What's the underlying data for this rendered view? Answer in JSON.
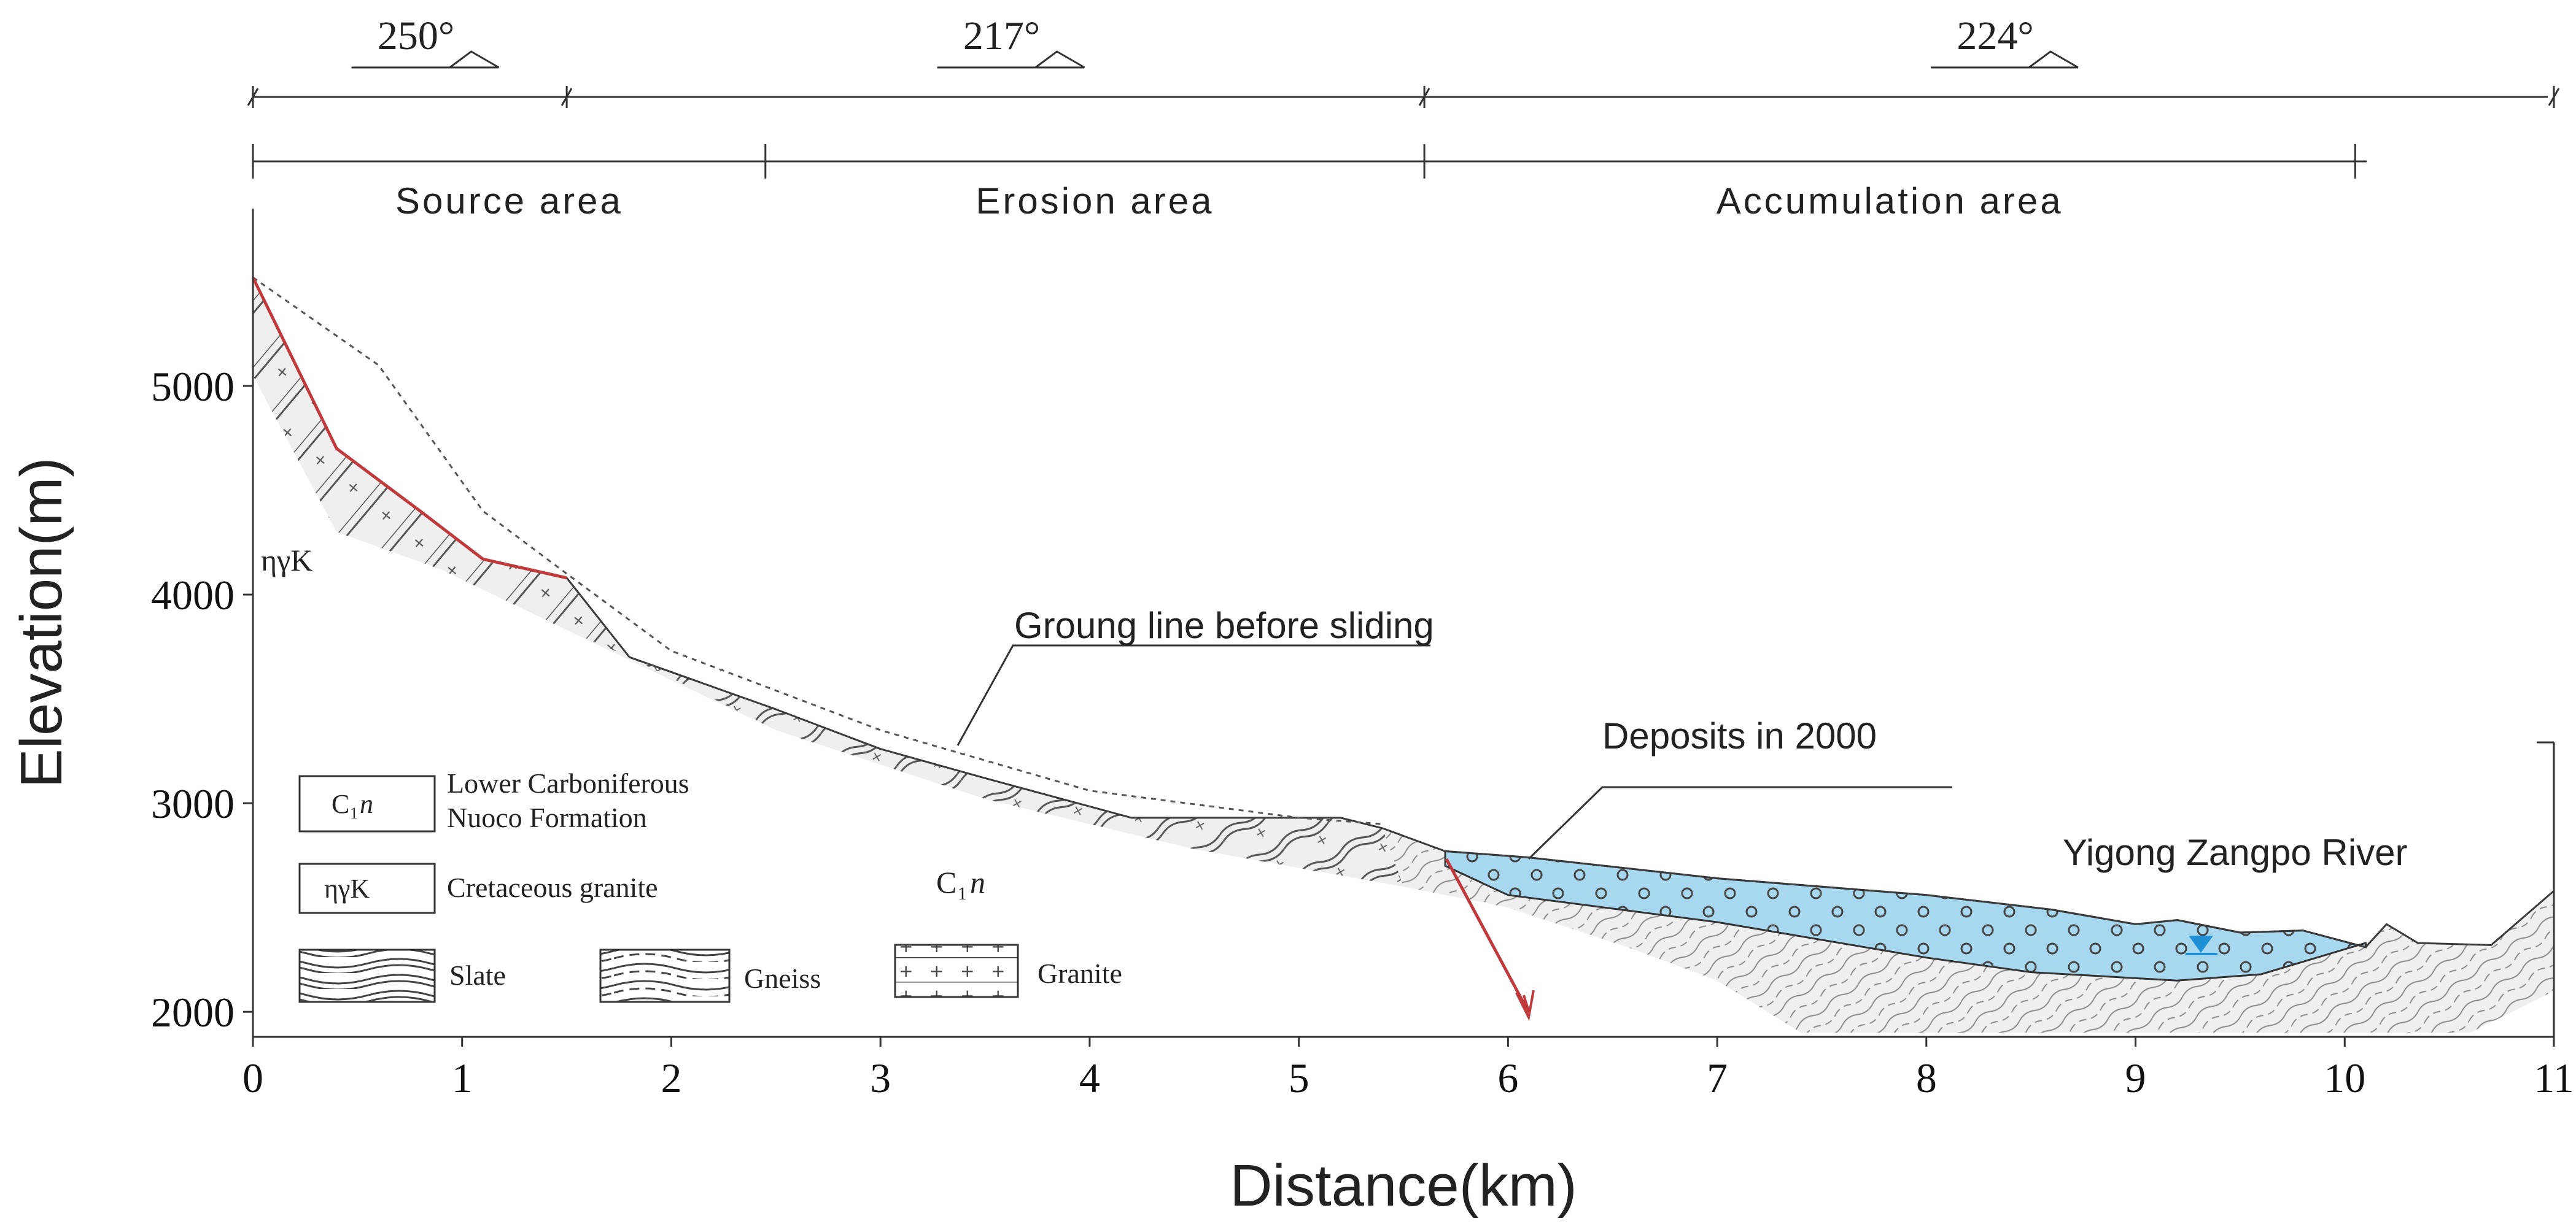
{
  "chart_data": {
    "type": "cross-section",
    "xlabel": "Distance(km)",
    "ylabel": "Elevation(m)",
    "xlim": [
      0,
      11
    ],
    "ylim": [
      1880,
      5850
    ],
    "x_ticks": [
      "0",
      "1",
      "2",
      "3",
      "4",
      "5",
      "6",
      "7",
      "8",
      "9",
      "10",
      "11"
    ],
    "y_ticks": [
      {
        "value": 2000,
        "label": "2000"
      },
      {
        "value": 3000,
        "label": "3000"
      },
      {
        "value": 4000,
        "label": "4000"
      },
      {
        "value": 5000,
        "label": "5000"
      }
    ],
    "slope_directions": [
      {
        "label": "250°",
        "from_km": 0,
        "to_km": 1.5
      },
      {
        "label": "217°",
        "from_km": 1.5,
        "to_km": 5.6
      },
      {
        "label": "224°",
        "from_km": 5.6,
        "to_km": 11
      }
    ],
    "zones": [
      {
        "label": "Source area",
        "from_km": 0,
        "to_km": 2.45
      },
      {
        "label": "Erosion area",
        "from_km": 2.45,
        "to_km": 5.6
      },
      {
        "label": "Accumulation area",
        "from_km": 5.6,
        "to_km": 10.05
      }
    ],
    "ground_before_sliding": [
      [
        0,
        5520
      ],
      [
        0.6,
        5100
      ],
      [
        1.1,
        4400
      ],
      [
        1.5,
        4100
      ],
      [
        2,
        3730
      ],
      [
        3,
        3350
      ],
      [
        4,
        3060
      ],
      [
        5,
        2930
      ],
      [
        5.4,
        2900
      ]
    ],
    "current_surface": [
      [
        0,
        5520
      ],
      [
        0.4,
        4700
      ],
      [
        0.8,
        4400
      ],
      [
        1.1,
        4170
      ],
      [
        1.5,
        4080
      ],
      [
        1.8,
        3700
      ],
      [
        2.5,
        3450
      ],
      [
        3,
        3260
      ],
      [
        3.5,
        3120
      ],
      [
        4.2,
        2930
      ],
      [
        5.2,
        2930
      ],
      [
        5.4,
        2880
      ],
      [
        5.7,
        2770
      ],
      [
        6.1,
        2740
      ],
      [
        7,
        2640
      ],
      [
        8,
        2560
      ],
      [
        8.6,
        2490
      ],
      [
        9,
        2420
      ],
      [
        9.2,
        2440
      ],
      [
        9.5,
        2380
      ],
      [
        9.8,
        2390
      ],
      [
        10.1,
        2310
      ],
      [
        10.2,
        2420
      ],
      [
        10.35,
        2330
      ],
      [
        10.7,
        2320
      ],
      [
        11,
        2580
      ]
    ],
    "deposits_base": [
      [
        5.7,
        2700
      ],
      [
        6,
        2560
      ],
      [
        7,
        2430
      ],
      [
        8,
        2260
      ],
      [
        8.5,
        2190
      ],
      [
        9.2,
        2150
      ],
      [
        9.6,
        2180
      ],
      [
        10.1,
        2330
      ]
    ],
    "deposits_top": [
      [
        5.7,
        2770
      ],
      [
        6.1,
        2740
      ],
      [
        7,
        2640
      ],
      [
        8,
        2560
      ],
      [
        8.6,
        2490
      ],
      [
        9,
        2420
      ],
      [
        9.2,
        2440
      ],
      [
        9.5,
        2380
      ],
      [
        9.8,
        2390
      ],
      [
        10.1,
        2310
      ]
    ],
    "bedrock_lower": [
      [
        0,
        5050
      ],
      [
        0.4,
        4300
      ],
      [
        0.9,
        4120
      ],
      [
        1.5,
        3830
      ],
      [
        2.5,
        3350
      ],
      [
        3.5,
        3020
      ],
      [
        4.5,
        2780
      ],
      [
        5.5,
        2600
      ],
      [
        6,
        2500
      ],
      [
        6.6,
        2300
      ],
      [
        7,
        2150
      ],
      [
        7.4,
        1900
      ],
      [
        10.6,
        1900
      ],
      [
        11,
        2100
      ]
    ],
    "annotations": {
      "ground_line": "Groung line before sliding",
      "deposits": "Deposits in 2000",
      "river": "Yigong Zangpo River",
      "granite_unit": "ηγK",
      "formation_unit_main": "C",
      "formation_unit_sub": "1",
      "formation_unit_italic": "n"
    },
    "legend": {
      "c1n_desc_line1": "Lower Carboniferous",
      "c1n_desc_line2": "Nuoco Formation",
      "granite_desc": "Cretaceous granite",
      "slate": "Slate",
      "gneiss": "Gneiss",
      "granite": "Granite"
    },
    "colors": {
      "deposit": "#a8d8f0",
      "rock_fill": "#efefef",
      "scarp": "#c0393b",
      "river": "#1f8fd6",
      "line": "#4a4a4a"
    }
  }
}
